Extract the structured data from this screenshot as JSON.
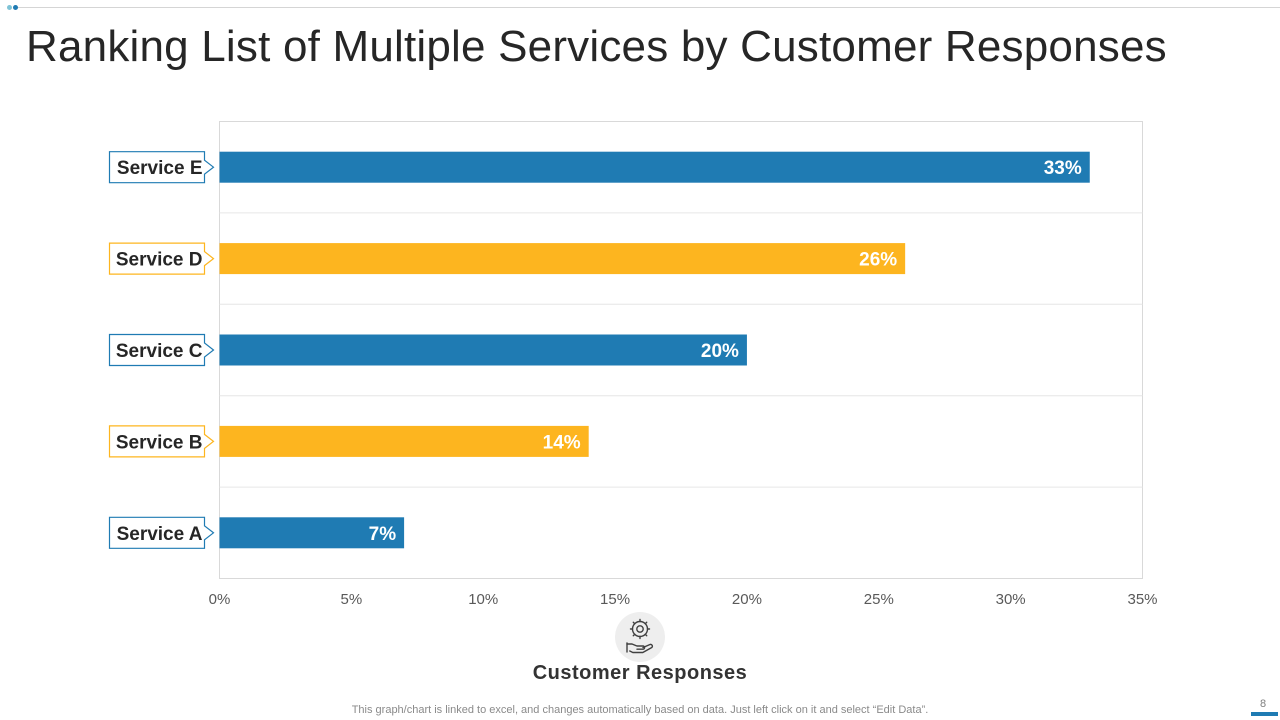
{
  "page": {
    "title": "Ranking List of Multiple Services by Customer Responses",
    "footnote": "This graph/chart is linked to excel,  and changes automatically based on data. Just left click on it and select “Edit Data”.",
    "page_number": "8",
    "icon": "hand-gear-icon"
  },
  "colors": {
    "blue": "#1f7bb3",
    "yellow": "#fdb51f",
    "text": "#262626",
    "grid": "#e6e6e6",
    "border": "#d9d9d9"
  },
  "chart_data": {
    "type": "bar",
    "orientation": "horizontal",
    "title": "",
    "xlabel": "Customer Responses",
    "ylabel": "",
    "categories": [
      "Service E",
      "Service D",
      "Service C",
      "Service B",
      "Service A"
    ],
    "values": [
      33,
      26,
      20,
      14,
      7
    ],
    "value_labels": [
      "33%",
      "26%",
      "20%",
      "14%",
      "7%"
    ],
    "bar_colors": [
      "#1f7bb3",
      "#fdb51f",
      "#1f7bb3",
      "#fdb51f",
      "#1f7bb3"
    ],
    "xlim": [
      0,
      35
    ],
    "xticks": [
      0,
      5,
      10,
      15,
      20,
      25,
      30,
      35
    ],
    "xtick_labels": [
      "0%",
      "5%",
      "10%",
      "15%",
      "20%",
      "25%",
      "30%",
      "35%"
    ],
    "grid": true,
    "legend": "none"
  }
}
